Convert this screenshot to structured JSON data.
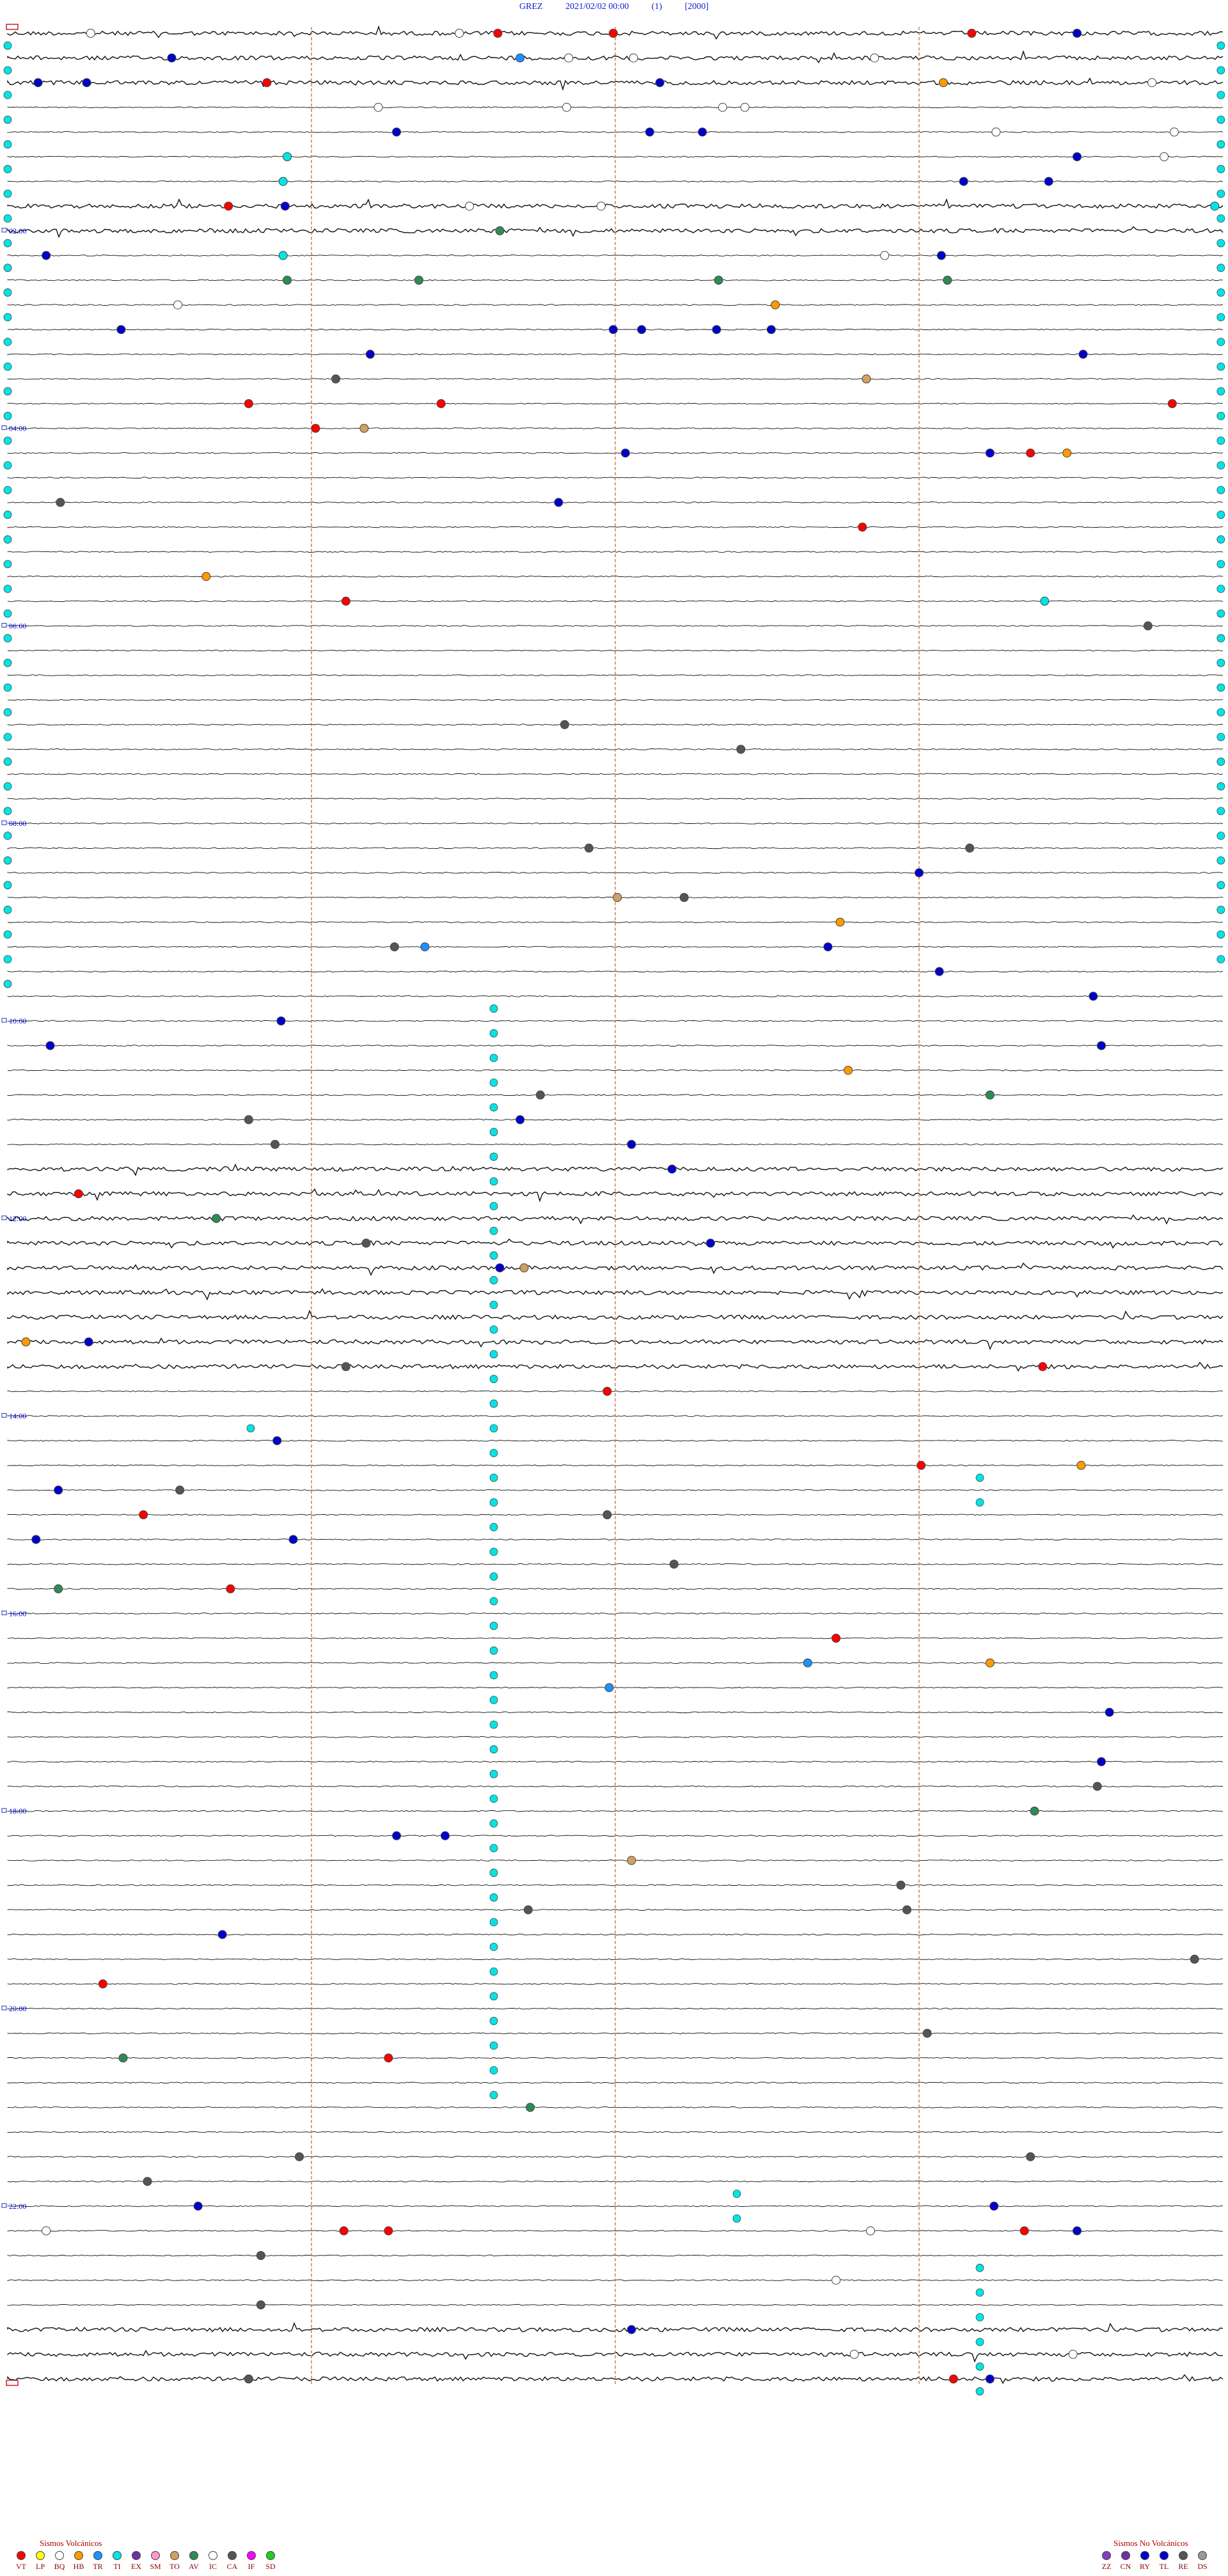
{
  "header": {
    "station": "GREZ",
    "datetime": "2021/02/02 00:00",
    "component": "(1)",
    "scale": "[2000]"
  },
  "chart_data": {
    "type": "helicorder",
    "rows": 96,
    "minutes_per_row": 15,
    "hour_labels": [
      "02:00",
      "04:00",
      "06:00",
      "08:00",
      "10:00",
      "12:00",
      "14:00",
      "16:00",
      "18:00",
      "20:00",
      "22:00"
    ],
    "hour_label_rows": [
      8,
      16,
      24,
      32,
      40,
      48,
      56,
      64,
      72,
      80,
      88
    ],
    "minute_markers": [
      15,
      30,
      45,
      60
    ],
    "events": [
      {
        "row": 0,
        "min": 4.1,
        "type": "IC"
      },
      {
        "row": 0,
        "min": 22.3,
        "type": "IC"
      },
      {
        "row": 0,
        "min": 24.2,
        "type": "VT"
      },
      {
        "row": 0,
        "min": 29.9,
        "type": "VT"
      },
      {
        "row": 0,
        "min": 47.6,
        "type": "VT"
      },
      {
        "row": 0,
        "min": 52.8,
        "type": "RY"
      },
      {
        "row": 1,
        "min": 8.1,
        "type": "RY"
      },
      {
        "row": 1,
        "min": 25.3,
        "type": "TR"
      },
      {
        "row": 1,
        "min": 27.7,
        "type": "IC"
      },
      {
        "row": 1,
        "min": 30.9,
        "type": "IC"
      },
      {
        "row": 1,
        "min": 42.8,
        "type": "IC"
      },
      {
        "row": 2,
        "min": 1.5,
        "type": "RY"
      },
      {
        "row": 2,
        "min": 3.9,
        "type": "RY"
      },
      {
        "row": 2,
        "min": 12.8,
        "type": "VT"
      },
      {
        "row": 2,
        "min": 32.2,
        "type": "RY"
      },
      {
        "row": 2,
        "min": 46.2,
        "type": "HB"
      },
      {
        "row": 2,
        "min": 56.5,
        "type": "IC"
      },
      {
        "row": 3,
        "min": 18.3,
        "type": "IC"
      },
      {
        "row": 3,
        "min": 27.6,
        "type": "IC"
      },
      {
        "row": 3,
        "min": 35.3,
        "type": "IC"
      },
      {
        "row": 3,
        "min": 36.4,
        "type": "IC"
      },
      {
        "row": 4,
        "min": 19.2,
        "type": "RY"
      },
      {
        "row": 4,
        "min": 31.7,
        "type": "RY"
      },
      {
        "row": 4,
        "min": 34.3,
        "type": "RY"
      },
      {
        "row": 4,
        "min": 48.8,
        "type": "IC"
      },
      {
        "row": 4,
        "min": 57.6,
        "type": "IC"
      },
      {
        "row": 5,
        "min": 13.8,
        "type": "TI"
      },
      {
        "row": 5,
        "min": 52.8,
        "type": "RY"
      },
      {
        "row": 5,
        "min": 57.1,
        "type": "IC"
      },
      {
        "row": 6,
        "min": 13.6,
        "type": "TI"
      },
      {
        "row": 6,
        "min": 47.2,
        "type": "RY"
      },
      {
        "row": 6,
        "min": 51.4,
        "type": "RY"
      },
      {
        "row": 7,
        "min": 10.9,
        "type": "VT"
      },
      {
        "row": 7,
        "min": 13.7,
        "type": "RY"
      },
      {
        "row": 7,
        "min": 22.8,
        "type": "BQ"
      },
      {
        "row": 7,
        "min": 29.3,
        "type": "IC"
      },
      {
        "row": 7,
        "min": 59.6,
        "type": "TI"
      },
      {
        "row": 8,
        "min": 24.3,
        "type": "AV"
      },
      {
        "row": 9,
        "min": 1.9,
        "type": "RY"
      },
      {
        "row": 9,
        "min": 13.6,
        "type": "TI"
      },
      {
        "row": 9,
        "min": 43.3,
        "type": "IC"
      },
      {
        "row": 9,
        "min": 46.1,
        "type": "RY"
      },
      {
        "row": 10,
        "min": 13.8,
        "type": "AV"
      },
      {
        "row": 10,
        "min": 20.3,
        "type": "AV"
      },
      {
        "row": 10,
        "min": 35.1,
        "type": "AV"
      },
      {
        "row": 10,
        "min": 46.4,
        "type": "AV"
      },
      {
        "row": 11,
        "min": 8.4,
        "type": "IC"
      },
      {
        "row": 11,
        "min": 37.9,
        "type": "HB"
      },
      {
        "row": 12,
        "min": 5.6,
        "type": "RY"
      },
      {
        "row": 12,
        "min": 29.9,
        "type": "RY"
      },
      {
        "row": 12,
        "min": 31.3,
        "type": "RY"
      },
      {
        "row": 12,
        "min": 35.0,
        "type": "RY"
      },
      {
        "row": 12,
        "min": 37.7,
        "type": "RY"
      },
      {
        "row": 13,
        "min": 17.9,
        "type": "RY"
      },
      {
        "row": 13,
        "min": 53.1,
        "type": "RY"
      },
      {
        "row": 14,
        "min": 16.2,
        "type": "CA"
      },
      {
        "row": 14,
        "min": 42.4,
        "type": "TO"
      },
      {
        "row": 15,
        "min": 11.9,
        "type": "VT"
      },
      {
        "row": 15,
        "min": 21.4,
        "type": "VT"
      },
      {
        "row": 15,
        "min": 57.5,
        "type": "VT"
      },
      {
        "row": 16,
        "min": 15.2,
        "type": "VT"
      },
      {
        "row": 16,
        "min": 17.6,
        "type": "TO"
      },
      {
        "row": 17,
        "min": 30.5,
        "type": "RY"
      },
      {
        "row": 17,
        "min": 48.5,
        "type": "RY"
      },
      {
        "row": 17,
        "min": 50.5,
        "type": "VT"
      },
      {
        "row": 17,
        "min": 52.3,
        "type": "HB"
      },
      {
        "row": 19,
        "min": 2.6,
        "type": "CA"
      },
      {
        "row": 19,
        "min": 27.2,
        "type": "RY"
      },
      {
        "row": 20,
        "min": 42.2,
        "type": "VT"
      },
      {
        "row": 22,
        "min": 9.8,
        "type": "HB"
      },
      {
        "row": 23,
        "min": 16.7,
        "type": "VT"
      },
      {
        "row": 23,
        "min": 51.2,
        "type": "TI"
      },
      {
        "row": 24,
        "min": 56.3,
        "type": "CA"
      },
      {
        "row": 28,
        "min": 27.5,
        "type": "CA"
      },
      {
        "row": 29,
        "min": 36.2,
        "type": "CA"
      },
      {
        "row": 33,
        "min": 28.7,
        "type": "CA"
      },
      {
        "row": 33,
        "min": 47.5,
        "type": "CA"
      },
      {
        "row": 34,
        "min": 45.0,
        "type": "RY"
      },
      {
        "row": 35,
        "min": 30.1,
        "type": "TO"
      },
      {
        "row": 35,
        "min": 33.4,
        "type": "CA"
      },
      {
        "row": 36,
        "min": 41.1,
        "type": "HB"
      },
      {
        "row": 37,
        "min": 19.1,
        "type": "CA"
      },
      {
        "row": 37,
        "min": 20.6,
        "type": "TR"
      },
      {
        "row": 37,
        "min": 40.5,
        "type": "RY"
      },
      {
        "row": 38,
        "min": 46.0,
        "type": "RY"
      },
      {
        "row": 39,
        "min": 53.6,
        "type": "RY"
      },
      {
        "row": 40,
        "min": 13.5,
        "type": "RY"
      },
      {
        "row": 41,
        "min": 2.1,
        "type": "RY"
      },
      {
        "row": 41,
        "min": 54.0,
        "type": "RY"
      },
      {
        "row": 42,
        "min": 41.5,
        "type": "HB"
      },
      {
        "row": 43,
        "min": 26.3,
        "type": "CA"
      },
      {
        "row": 43,
        "min": 48.5,
        "type": "AV"
      },
      {
        "row": 44,
        "min": 25.3,
        "type": "RY"
      },
      {
        "row": 44,
        "min": 11.9,
        "type": "CA"
      },
      {
        "row": 45,
        "min": 13.2,
        "type": "CA"
      },
      {
        "row": 45,
        "min": 30.8,
        "type": "RY"
      },
      {
        "row": 46,
        "min": 32.8,
        "type": "RY"
      },
      {
        "row": 47,
        "min": 3.5,
        "type": "VT"
      },
      {
        "row": 48,
        "min": 10.3,
        "type": "AV"
      },
      {
        "row": 49,
        "min": 17.7,
        "type": "CA"
      },
      {
        "row": 49,
        "min": 34.7,
        "type": "RY"
      },
      {
        "row": 50,
        "min": 24.3,
        "type": "RY"
      },
      {
        "row": 50,
        "min": 25.5,
        "type": "TO"
      },
      {
        "row": 53,
        "min": 0.9,
        "type": "HB"
      },
      {
        "row": 53,
        "min": 4.0,
        "type": "RY"
      },
      {
        "row": 54,
        "min": 16.7,
        "type": "CA"
      },
      {
        "row": 54,
        "min": 51.1,
        "type": "VT"
      },
      {
        "row": 55,
        "min": 29.6,
        "type": "VT"
      },
      {
        "row": 57,
        "min": 13.3,
        "type": "RY"
      },
      {
        "row": 58,
        "min": 45.1,
        "type": "VT"
      },
      {
        "row": 58,
        "min": 53.0,
        "type": "HB"
      },
      {
        "row": 59,
        "min": 2.5,
        "type": "RY"
      },
      {
        "row": 59,
        "min": 8.5,
        "type": "CA"
      },
      {
        "row": 60,
        "min": 6.7,
        "type": "VT"
      },
      {
        "row": 60,
        "min": 29.6,
        "type": "CA"
      },
      {
        "row": 61,
        "min": 1.4,
        "type": "RY"
      },
      {
        "row": 61,
        "min": 14.1,
        "type": "RY"
      },
      {
        "row": 62,
        "min": 32.9,
        "type": "CA"
      },
      {
        "row": 63,
        "min": 2.5,
        "type": "AV"
      },
      {
        "row": 63,
        "min": 11.0,
        "type": "VT"
      },
      {
        "row": 65,
        "min": 40.9,
        "type": "VT"
      },
      {
        "row": 66,
        "min": 39.5,
        "type": "TR"
      },
      {
        "row": 66,
        "min": 48.5,
        "type": "HB"
      },
      {
        "row": 67,
        "min": 29.7,
        "type": "TR"
      },
      {
        "row": 68,
        "min": 54.4,
        "type": "RY"
      },
      {
        "row": 70,
        "min": 54.0,
        "type": "RY"
      },
      {
        "row": 71,
        "min": 53.8,
        "type": "CA"
      },
      {
        "row": 72,
        "min": 50.7,
        "type": "AV"
      },
      {
        "row": 73,
        "min": 19.2,
        "type": "RY"
      },
      {
        "row": 73,
        "min": 21.6,
        "type": "RY"
      },
      {
        "row": 74,
        "min": 30.8,
        "type": "TO"
      },
      {
        "row": 75,
        "min": 44.1,
        "type": "CA"
      },
      {
        "row": 76,
        "min": 25.7,
        "type": "CA"
      },
      {
        "row": 76,
        "min": 44.4,
        "type": "CA"
      },
      {
        "row": 77,
        "min": 10.6,
        "type": "RY"
      },
      {
        "row": 78,
        "min": 58.6,
        "type": "CA"
      },
      {
        "row": 79,
        "min": 4.7,
        "type": "VT"
      },
      {
        "row": 81,
        "min": 45.4,
        "type": "CA"
      },
      {
        "row": 82,
        "min": 18.8,
        "type": "VT"
      },
      {
        "row": 82,
        "min": 5.7,
        "type": "AV"
      },
      {
        "row": 84,
        "min": 25.8,
        "type": "AV"
      },
      {
        "row": 86,
        "min": 14.4,
        "type": "CA"
      },
      {
        "row": 86,
        "min": 50.5,
        "type": "CA"
      },
      {
        "row": 87,
        "min": 6.9,
        "type": "CA"
      },
      {
        "row": 88,
        "min": 9.4,
        "type": "RY"
      },
      {
        "row": 88,
        "min": 48.7,
        "type": "RY"
      },
      {
        "row": 89,
        "min": 42.6,
        "type": "BQ"
      },
      {
        "row": 89,
        "min": 1.9,
        "type": "BQ"
      },
      {
        "row": 89,
        "min": 16.6,
        "type": "VT"
      },
      {
        "row": 89,
        "min": 18.8,
        "type": "VT"
      },
      {
        "row": 89,
        "min": 52.8,
        "type": "RY"
      },
      {
        "row": 89,
        "min": 50.2,
        "type": "VT"
      },
      {
        "row": 90,
        "min": 12.5,
        "type": "CA"
      },
      {
        "row": 91,
        "min": 40.9,
        "type": "BQ"
      },
      {
        "row": 92,
        "min": 12.5,
        "type": "CA"
      },
      {
        "row": 93,
        "min": 30.8,
        "type": "RY"
      },
      {
        "row": 94,
        "min": 41.8,
        "type": "BQ"
      },
      {
        "row": 94,
        "min": 52.6,
        "type": "BQ"
      },
      {
        "row": 95,
        "min": 11.9,
        "type": "CA"
      },
      {
        "row": 95,
        "min": 46.7,
        "type": "VT"
      },
      {
        "row": 95,
        "min": 48.5,
        "type": "RY"
      }
    ],
    "tremor_runs": [
      {
        "min": 24.0,
        "row_start": 39,
        "row_end": 84
      },
      {
        "min": 12.0,
        "row_start": 56,
        "row_end": 57
      },
      {
        "min": 48.0,
        "row_start": 58,
        "row_end": 60
      },
      {
        "min": 36.0,
        "row_start": 87,
        "row_end": 89
      },
      {
        "min": 48.0,
        "row_start": 90,
        "row_end": 96
      },
      {
        "min": 0.0,
        "row_start": 0,
        "row_end": 39
      },
      {
        "min": 59.9,
        "row_start": 0,
        "row_end": 38
      }
    ],
    "noisy_rows": [
      0,
      1,
      2,
      7,
      8,
      46,
      47,
      48,
      49,
      50,
      51,
      52,
      53,
      54,
      93,
      94,
      95
    ]
  },
  "legend": {
    "volcanic_title": "Sismos Volcánicos",
    "volcanic": [
      {
        "code": "VT",
        "color": "#ff0000"
      },
      {
        "code": "LP",
        "color": "#ffff00"
      },
      {
        "code": "BQ",
        "color": "#ffffff"
      },
      {
        "code": "HB",
        "color": "#ff9900"
      },
      {
        "code": "TR",
        "color": "#1e90ff"
      },
      {
        "code": "TI",
        "color": "#00e5e5"
      },
      {
        "code": "EX",
        "color": "#7030a0"
      },
      {
        "code": "SM",
        "color": "#ff99cc"
      },
      {
        "code": "TO",
        "color": "#d2a060"
      },
      {
        "code": "AV",
        "color": "#2e8b57"
      },
      {
        "code": "IC",
        "color": "#ffffff"
      },
      {
        "code": "CA",
        "color": "#555555"
      },
      {
        "code": "IF",
        "color": "#ff00ff"
      },
      {
        "code": "SD",
        "color": "#22cc22"
      }
    ],
    "nonvolcanic_title": "Sismos No Volcánicos",
    "nonvolcanic": [
      {
        "code": "ZZ",
        "color": "#8040c0"
      },
      {
        "code": "CN",
        "color": "#7030a0"
      },
      {
        "code": "RY",
        "color": "#0000cc"
      },
      {
        "code": "TL",
        "color": "#0000cc"
      },
      {
        "code": "RE",
        "color": "#555555"
      },
      {
        "code": "DS",
        "color": "#999999"
      }
    ]
  },
  "colors": {
    "trace": "#111111",
    "minute_marker": "#e07040",
    "time_label": "#0000cc"
  }
}
